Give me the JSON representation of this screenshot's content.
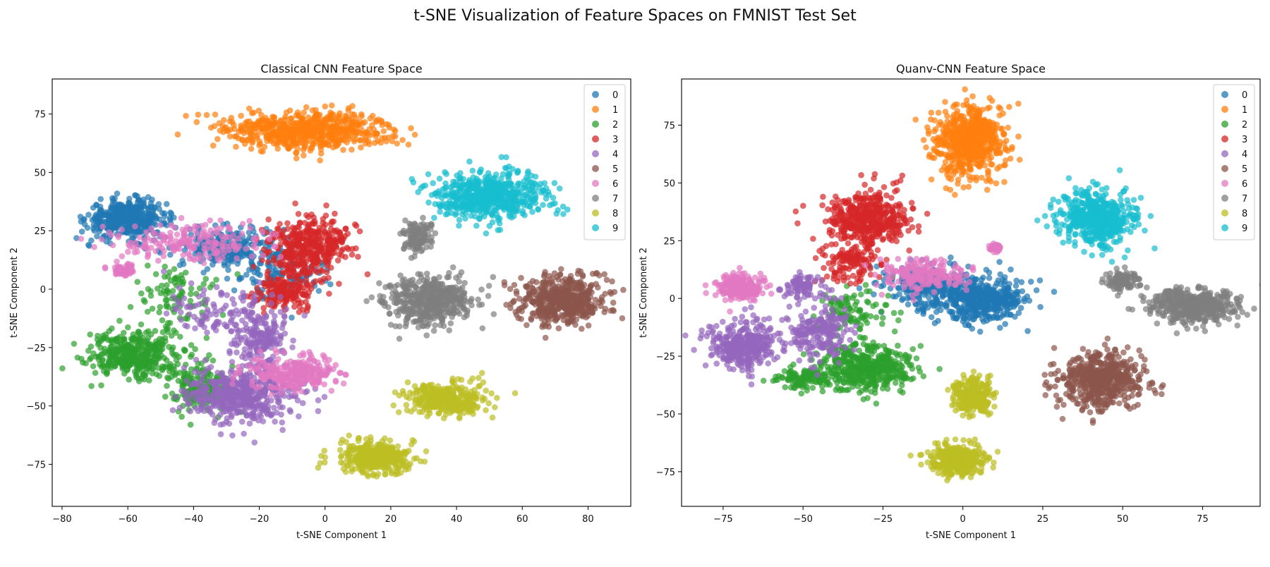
{
  "figure": {
    "suptitle": "t-SNE Visualization of Feature Spaces on FMNIST Test Set"
  },
  "colors": [
    "#1f77b4",
    "#ff7f0e",
    "#2ca02c",
    "#d62728",
    "#9467bd",
    "#8c564b",
    "#e377c2",
    "#7f7f7f",
    "#bcbd22",
    "#17becf"
  ],
  "chart_data": [
    {
      "type": "scatter",
      "title": "Classical CNN Feature Space",
      "xlabel": "t-SNE Component 1",
      "ylabel": "t-SNE Component 2",
      "xlim": [
        -83,
        93
      ],
      "ylim": [
        -93,
        90
      ],
      "xticks": [
        -80,
        -60,
        -40,
        -20,
        0,
        20,
        40,
        60,
        80
      ],
      "yticks": [
        -75,
        -50,
        -25,
        0,
        25,
        50,
        75
      ],
      "legend": {
        "position": "top-right",
        "labels": [
          "0",
          "1",
          "2",
          "3",
          "4",
          "5",
          "6",
          "7",
          "8",
          "9"
        ]
      },
      "grid": false,
      "series": [
        {
          "name": "0",
          "clusters": [
            {
              "cx": -60,
              "cy": 30,
              "rx": 12,
              "ry": 8,
              "n": 420
            },
            {
              "cx": -30,
              "cy": 18,
              "rx": 16,
              "ry": 9,
              "n": 220
            },
            {
              "cx": -12,
              "cy": 8,
              "rx": 14,
              "ry": 12,
              "n": 120
            }
          ]
        },
        {
          "name": "1",
          "clusters": [
            {
              "cx": -5,
              "cy": 68,
              "rx": 25,
              "ry": 8,
              "n": 620
            }
          ]
        },
        {
          "name": "2",
          "clusters": [
            {
              "cx": -58,
              "cy": -28,
              "rx": 14,
              "ry": 10,
              "n": 400
            },
            {
              "cx": -38,
              "cy": -42,
              "rx": 10,
              "ry": 10,
              "n": 180
            },
            {
              "cx": -45,
              "cy": -2,
              "rx": 12,
              "ry": 12,
              "n": 90
            }
          ]
        },
        {
          "name": "3",
          "clusters": [
            {
              "cx": -5,
              "cy": 18,
              "rx": 12,
              "ry": 12,
              "n": 380
            },
            {
              "cx": -12,
              "cy": 0,
              "rx": 9,
              "ry": 10,
              "n": 180
            }
          ]
        },
        {
          "name": "4",
          "clusters": [
            {
              "cx": -25,
              "cy": -45,
              "rx": 17,
              "ry": 12,
              "n": 480
            },
            {
              "cx": -20,
              "cy": -20,
              "rx": 9,
              "ry": 12,
              "n": 180
            },
            {
              "cx": -35,
              "cy": -10,
              "rx": 14,
              "ry": 12,
              "n": 90
            }
          ]
        },
        {
          "name": "5",
          "clusters": [
            {
              "cx": 73,
              "cy": -5,
              "rx": 14,
              "ry": 10,
              "n": 520
            }
          ]
        },
        {
          "name": "6",
          "clusters": [
            {
              "cx": -10,
              "cy": -36,
              "rx": 13,
              "ry": 7,
              "n": 260
            },
            {
              "cx": -40,
              "cy": 20,
              "rx": 22,
              "ry": 9,
              "n": 200
            },
            {
              "cx": -62,
              "cy": 8,
              "rx": 4,
              "ry": 3,
              "n": 60
            }
          ]
        },
        {
          "name": "7",
          "clusters": [
            {
              "cx": 32,
              "cy": -5,
              "rx": 13,
              "ry": 10,
              "n": 480
            },
            {
              "cx": 28,
              "cy": 22,
              "rx": 5,
              "ry": 7,
              "n": 120
            }
          ]
        },
        {
          "name": "8",
          "clusters": [
            {
              "cx": 37,
              "cy": -47,
              "rx": 12,
              "ry": 7,
              "n": 330
            },
            {
              "cx": 15,
              "cy": -72,
              "rx": 11,
              "ry": 7,
              "n": 360
            }
          ]
        },
        {
          "name": "9",
          "clusters": [
            {
              "cx": 50,
              "cy": 40,
              "rx": 17,
              "ry": 10,
              "n": 560
            }
          ]
        }
      ]
    },
    {
      "type": "scatter",
      "title": "Quanv-CNN Feature Space",
      "xlabel": "t-SNE Component 1",
      "ylabel": "t-SNE Component 2",
      "xlim": [
        -88,
        93
      ],
      "ylim": [
        -90,
        95
      ],
      "xticks": [
        -75,
        -50,
        -25,
        0,
        25,
        50,
        75
      ],
      "yticks": [
        -75,
        -50,
        -25,
        0,
        25,
        50,
        75
      ],
      "legend": {
        "position": "top-right",
        "labels": [
          "0",
          "1",
          "2",
          "3",
          "4",
          "5",
          "6",
          "7",
          "8",
          "9"
        ]
      },
      "grid": false,
      "series": [
        {
          "name": "0",
          "clusters": [
            {
              "cx": 5,
              "cy": 0,
              "rx": 14,
              "ry": 10,
              "n": 480
            },
            {
              "cx": -12,
              "cy": 5,
              "rx": 12,
              "ry": 10,
              "n": 200
            }
          ]
        },
        {
          "name": "1",
          "clusters": [
            {
              "cx": 2,
              "cy": 68,
              "rx": 11,
              "ry": 15,
              "n": 600
            }
          ]
        },
        {
          "name": "2",
          "clusters": [
            {
              "cx": -30,
              "cy": -30,
              "rx": 14,
              "ry": 10,
              "n": 450
            },
            {
              "cx": -50,
              "cy": -35,
              "rx": 10,
              "ry": 5,
              "n": 120
            },
            {
              "cx": -35,
              "cy": -5,
              "rx": 12,
              "ry": 10,
              "n": 100
            }
          ]
        },
        {
          "name": "3",
          "clusters": [
            {
              "cx": -30,
              "cy": 35,
              "rx": 12,
              "ry": 12,
              "n": 450
            },
            {
              "cx": -35,
              "cy": 15,
              "rx": 10,
              "ry": 8,
              "n": 120
            }
          ]
        },
        {
          "name": "4",
          "clusters": [
            {
              "cx": -68,
              "cy": -20,
              "rx": 10,
              "ry": 10,
              "n": 350
            },
            {
              "cx": -45,
              "cy": -15,
              "rx": 10,
              "ry": 12,
              "n": 200
            },
            {
              "cx": -50,
              "cy": 5,
              "rx": 6,
              "ry": 6,
              "n": 80
            }
          ]
        },
        {
          "name": "5",
          "clusters": [
            {
              "cx": 43,
              "cy": -35,
              "rx": 13,
              "ry": 12,
              "n": 550
            }
          ]
        },
        {
          "name": "6",
          "clusters": [
            {
              "cx": -70,
              "cy": 5,
              "rx": 7,
              "ry": 6,
              "n": 220
            },
            {
              "cx": -12,
              "cy": 10,
              "rx": 15,
              "ry": 7,
              "n": 200
            },
            {
              "cx": 10,
              "cy": 22,
              "rx": 2,
              "ry": 2,
              "n": 30
            }
          ]
        },
        {
          "name": "7",
          "clusters": [
            {
              "cx": 72,
              "cy": -3,
              "rx": 13,
              "ry": 7,
              "n": 480
            },
            {
              "cx": 50,
              "cy": 8,
              "rx": 5,
              "ry": 5,
              "n": 100
            }
          ]
        },
        {
          "name": "8",
          "clusters": [
            {
              "cx": 3,
              "cy": -42,
              "rx": 6,
              "ry": 8,
              "n": 280
            },
            {
              "cx": -2,
              "cy": -70,
              "rx": 9,
              "ry": 7,
              "n": 350
            }
          ]
        },
        {
          "name": "9",
          "clusters": [
            {
              "cx": 42,
              "cy": 35,
              "rx": 11,
              "ry": 12,
              "n": 520
            }
          ]
        }
      ]
    }
  ]
}
